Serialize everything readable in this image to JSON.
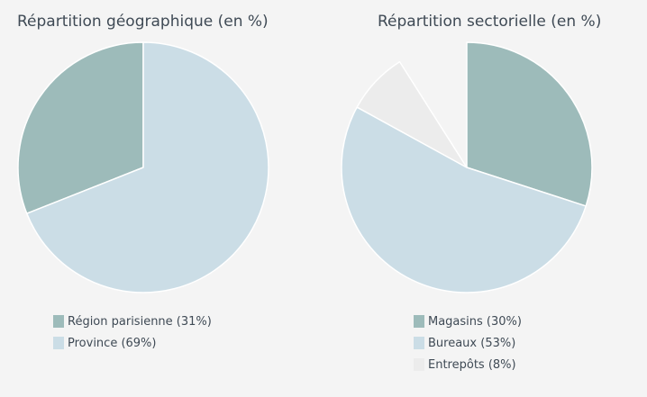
{
  "colors": {
    "background": "#f4f4f4",
    "text": "#3f4a55",
    "slice_border": "#ffffff"
  },
  "chart_data": [
    {
      "type": "pie",
      "title": "Répartition géographique (en %)",
      "start": "top",
      "direction": "counterclockwise",
      "slices": [
        {
          "label": "Région parisienne (31%)",
          "value": 31,
          "color": "#9dbbba"
        },
        {
          "label": "Province (69%)",
          "value": 69,
          "color": "#cbdde6"
        }
      ]
    },
    {
      "type": "pie",
      "title": "Répartition sectorielle (en %)",
      "start": "top",
      "direction": "clockwise",
      "slices": [
        {
          "label": "Magasins (30%)",
          "value": 30,
          "color": "#9dbbba"
        },
        {
          "label": "Bureaux (53%)",
          "value": 53,
          "color": "#cbdde6"
        },
        {
          "label": "Entrepôts (8%)",
          "value": 8,
          "color": "#ececec"
        }
      ]
    }
  ]
}
